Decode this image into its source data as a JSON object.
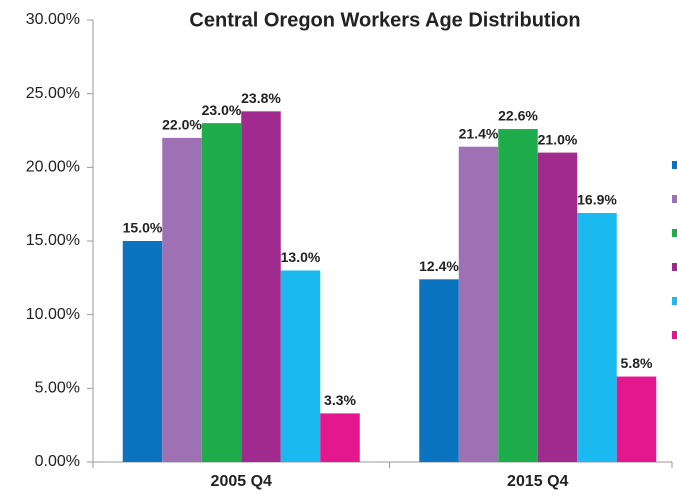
{
  "chart_data": {
    "type": "bar",
    "title": "Central Oregon Workers Age Distribution",
    "categories": [
      "2005 Q4",
      "2015 Q4"
    ],
    "series": [
      {
        "color": "#0a74c0",
        "values": [
          15.0,
          12.4
        ],
        "value_labels": [
          "15.0%",
          "12.4%"
        ]
      },
      {
        "color": "#9d71b4",
        "values": [
          22.0,
          21.4
        ],
        "value_labels": [
          "22.0%",
          "21.4%"
        ]
      },
      {
        "color": "#1fad4b",
        "values": [
          23.0,
          22.6
        ],
        "value_labels": [
          "23.0%",
          "22.6%"
        ]
      },
      {
        "color": "#a12a8e",
        "values": [
          23.8,
          21.0
        ],
        "value_labels": [
          "23.8%",
          "21.0%"
        ]
      },
      {
        "color": "#1ab9f0",
        "values": [
          13.0,
          16.9
        ],
        "value_labels": [
          "13.0%",
          "16.9%"
        ]
      },
      {
        "color": "#e5178e",
        "values": [
          3.3,
          5.8
        ],
        "value_labels": [
          "3.3%",
          "5.8%"
        ]
      }
    ],
    "ylim": [
      0,
      30
    ],
    "yticks": [
      {
        "value": 0,
        "label": "0.00%"
      },
      {
        "value": 5,
        "label": "5.00%"
      },
      {
        "value": 10,
        "label": "10.00%"
      },
      {
        "value": 15,
        "label": "15.00%"
      },
      {
        "value": 20,
        "label": "20.00%"
      },
      {
        "value": 25,
        "label": "25.00%"
      },
      {
        "value": 30,
        "label": "30.00%"
      }
    ],
    "legend": "right"
  }
}
